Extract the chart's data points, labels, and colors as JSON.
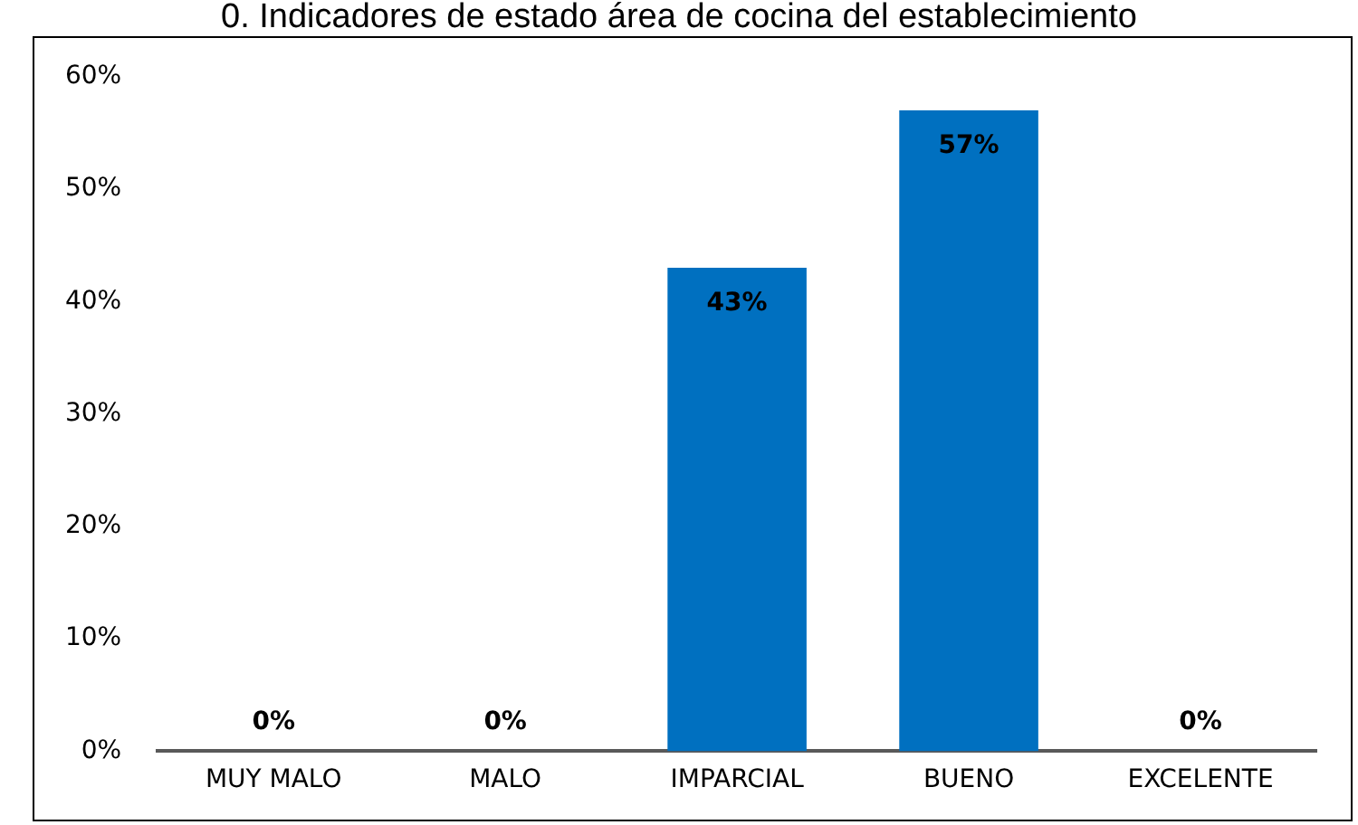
{
  "chart_data": {
    "type": "bar",
    "title": "0. Indicadores de estado área de cocina del establecimiento",
    "categories": [
      "MUY MALO",
      "MALO",
      "IMPARCIAL",
      "BUENO",
      "EXCELENTE"
    ],
    "values": [
      0,
      0,
      43,
      57,
      0
    ],
    "color": "#0070c0",
    "value_labels": [
      "0%",
      "0%",
      "43%",
      "57%",
      "0%"
    ],
    "ylim": [
      0,
      60
    ],
    "yticks": [
      {
        "value": 0,
        "label": "0%"
      },
      {
        "value": 10,
        "label": "10%"
      },
      {
        "value": 20,
        "label": "20%"
      },
      {
        "value": 30,
        "label": "30%"
      },
      {
        "value": 40,
        "label": "40%"
      },
      {
        "value": 50,
        "label": "50%"
      },
      {
        "value": 60,
        "label": "60%"
      }
    ],
    "grid": false,
    "legend": false
  }
}
